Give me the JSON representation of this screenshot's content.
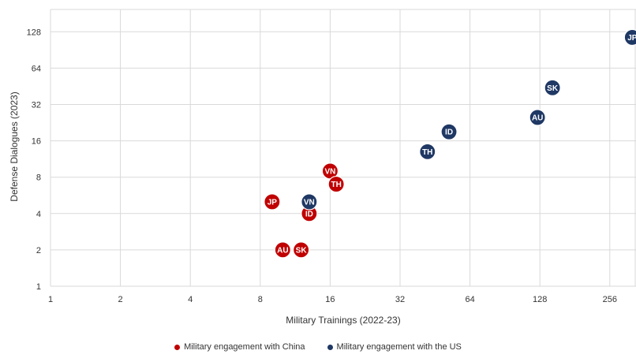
{
  "chart_data": {
    "type": "scatter",
    "xlabel": "Military Trainings (2022-23)",
    "ylabel": "Defense Dialogues (2023)",
    "x_scale": "log2",
    "y_scale": "log2",
    "xlim": [
      1,
      320
    ],
    "ylim": [
      1,
      128
    ],
    "x_ticks": [
      "1",
      "2",
      "4",
      "8",
      "16",
      "32",
      "64",
      "128",
      "256"
    ],
    "y_ticks": [
      "1",
      "2",
      "4",
      "8",
      "16",
      "32",
      "64",
      "128"
    ],
    "grid": true,
    "legend_position": "bottom-center",
    "series": [
      {
        "name": "Military engagement with China",
        "color": "#c00000",
        "points": [
          {
            "label": "JP",
            "x": 9,
            "y": 5
          },
          {
            "label": "AU",
            "x": 10,
            "y": 2
          },
          {
            "label": "SK",
            "x": 12,
            "y": 2
          },
          {
            "label": "ID",
            "x": 13,
            "y": 4
          },
          {
            "label": "VN",
            "x": 16,
            "y": 9
          },
          {
            "label": "TH",
            "x": 17,
            "y": 7
          }
        ]
      },
      {
        "name": "Military engagement with the US",
        "color": "#1f3864",
        "points": [
          {
            "label": "VN",
            "x": 13,
            "y": 5
          },
          {
            "label": "TH",
            "x": 42,
            "y": 13
          },
          {
            "label": "ID",
            "x": 52,
            "y": 19
          },
          {
            "label": "AU",
            "x": 125,
            "y": 25
          },
          {
            "label": "SK",
            "x": 145,
            "y": 44
          },
          {
            "label": "JP",
            "x": 320,
            "y": 115
          }
        ]
      }
    ]
  }
}
